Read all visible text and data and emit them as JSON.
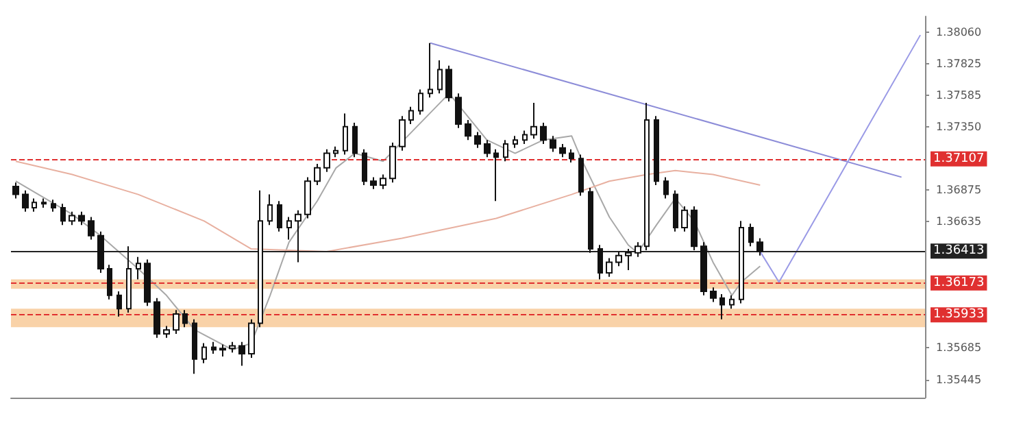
{
  "chart_data": {
    "type": "candlestick",
    "categories": [
      null,
      null,
      null,
      null,
      null,
      null,
      null,
      null,
      null,
      null,
      null,
      null,
      null,
      null,
      null,
      null,
      null,
      null,
      null,
      null,
      null,
      null,
      null,
      null,
      null,
      null,
      null,
      null,
      null,
      null,
      null,
      null,
      null,
      null,
      null,
      null,
      null,
      null,
      null,
      null,
      null,
      null,
      null,
      null,
      null,
      null,
      null,
      null,
      null,
      null,
      null,
      null,
      null,
      null,
      null,
      null,
      null,
      null,
      null,
      null,
      null,
      null,
      null,
      null,
      null,
      null,
      null,
      null,
      null,
      null,
      null,
      null,
      null,
      null,
      null,
      null,
      null,
      null,
      null,
      null,
      null,
      null,
      null,
      null,
      null,
      null,
      null,
      null,
      null,
      null,
      null,
      null,
      null,
      null,
      null,
      null,
      null
    ],
    "ohlc": [
      [
        1.369,
        1.3693,
        1.3681,
        1.3684
      ],
      [
        1.3684,
        1.3687,
        1.3671,
        1.3674
      ],
      [
        1.3674,
        1.3681,
        1.3671,
        1.3678
      ],
      [
        1.3678,
        1.3681,
        1.3674,
        1.3677
      ],
      [
        1.3677,
        1.368,
        1.3671,
        1.3674
      ],
      [
        1.3674,
        1.3677,
        1.3661,
        1.3664
      ],
      [
        1.3664,
        1.3671,
        1.3661,
        1.3668
      ],
      [
        1.3668,
        1.3671,
        1.3661,
        1.3664
      ],
      [
        1.3664,
        1.3667,
        1.365,
        1.3653
      ],
      [
        1.3653,
        1.3656,
        1.3625,
        1.3628
      ],
      [
        1.3628,
        1.3631,
        1.3605,
        1.3608
      ],
      [
        1.3608,
        1.3611,
        1.3592,
        1.3598
      ],
      [
        1.3598,
        1.3645,
        1.3595,
        1.3628
      ],
      [
        1.3628,
        1.3637,
        1.362,
        1.3632
      ],
      [
        1.3632,
        1.3635,
        1.36,
        1.3603
      ],
      [
        1.3603,
        1.3606,
        1.3576,
        1.3579
      ],
      [
        1.3579,
        1.3585,
        1.3576,
        1.3582
      ],
      [
        1.3582,
        1.3597,
        1.3579,
        1.3594
      ],
      [
        1.3594,
        1.3597,
        1.3584,
        1.3587
      ],
      [
        1.3587,
        1.359,
        1.3549,
        1.356
      ],
      [
        1.356,
        1.3572,
        1.3557,
        1.3569
      ],
      [
        1.3569,
        1.3573,
        1.3564,
        1.3567
      ],
      [
        1.3567,
        1.3571,
        1.3562,
        1.3568
      ],
      [
        1.3568,
        1.3573,
        1.3565,
        1.357
      ],
      [
        1.357,
        1.3573,
        1.3555,
        1.3564
      ],
      [
        1.3564,
        1.359,
        1.3561,
        1.3587
      ],
      [
        1.3587,
        1.3687,
        1.3584,
        1.3664
      ],
      [
        1.3664,
        1.3684,
        1.3661,
        1.3676
      ],
      [
        1.3676,
        1.3679,
        1.3656,
        1.3659
      ],
      [
        1.3659,
        1.3667,
        1.365,
        1.3664
      ],
      [
        1.3664,
        1.3672,
        1.3633,
        1.3669
      ],
      [
        1.3669,
        1.3697,
        1.3666,
        1.3694
      ],
      [
        1.3694,
        1.3707,
        1.3691,
        1.3704
      ],
      [
        1.3704,
        1.3718,
        1.3701,
        1.3715
      ],
      [
        1.3715,
        1.372,
        1.3712,
        1.3717
      ],
      [
        1.3717,
        1.3745,
        1.3714,
        1.3735
      ],
      [
        1.3735,
        1.3738,
        1.3712,
        1.3715
      ],
      [
        1.3715,
        1.3718,
        1.3691,
        1.3694
      ],
      [
        1.3694,
        1.3697,
        1.3688,
        1.3691
      ],
      [
        1.3691,
        1.3699,
        1.3688,
        1.3696
      ],
      [
        1.3696,
        1.3723,
        1.3693,
        1.372
      ],
      [
        1.372,
        1.3743,
        1.3717,
        1.374
      ],
      [
        1.374,
        1.375,
        1.3737,
        1.3747
      ],
      [
        1.3747,
        1.3763,
        1.3744,
        1.376
      ],
      [
        1.376,
        1.3798,
        1.3757,
        1.3763
      ],
      [
        1.3763,
        1.3785,
        1.376,
        1.3778
      ],
      [
        1.3778,
        1.3781,
        1.3754,
        1.3757
      ],
      [
        1.3757,
        1.376,
        1.3734,
        1.3737
      ],
      [
        1.3737,
        1.374,
        1.3725,
        1.3728
      ],
      [
        1.3728,
        1.3731,
        1.3719,
        1.3722
      ],
      [
        1.3722,
        1.3725,
        1.3712,
        1.3715
      ],
      [
        1.3715,
        1.3718,
        1.3679,
        1.3712
      ],
      [
        1.3712,
        1.3725,
        1.3709,
        1.3722
      ],
      [
        1.3722,
        1.3728,
        1.3719,
        1.3725
      ],
      [
        1.3725,
        1.3732,
        1.3722,
        1.3729
      ],
      [
        1.3729,
        1.3753,
        1.3726,
        1.3735
      ],
      [
        1.3735,
        1.3738,
        1.3722,
        1.3725
      ],
      [
        1.3725,
        1.3728,
        1.3716,
        1.3719
      ],
      [
        1.3719,
        1.3722,
        1.3712,
        1.3715
      ],
      [
        1.3715,
        1.3718,
        1.3708,
        1.3711
      ],
      [
        1.3711,
        1.3714,
        1.3683,
        1.3686
      ],
      [
        1.3686,
        1.3689,
        1.364,
        1.3643
      ],
      [
        1.3643,
        1.3646,
        1.362,
        1.3625
      ],
      [
        1.3625,
        1.3636,
        1.3622,
        1.3633
      ],
      [
        1.3633,
        1.3641,
        1.363,
        1.3638
      ],
      [
        1.3638,
        1.3643,
        1.3627,
        1.364
      ],
      [
        1.364,
        1.3648,
        1.3637,
        1.3645
      ],
      [
        1.3645,
        1.3753,
        1.3642,
        1.374
      ],
      [
        1.374,
        1.3743,
        1.3691,
        1.3694
      ],
      [
        1.3694,
        1.3697,
        1.3681,
        1.3684
      ],
      [
        1.3684,
        1.3687,
        1.3656,
        1.3659
      ],
      [
        1.3659,
        1.3675,
        1.3656,
        1.3672
      ],
      [
        1.3672,
        1.3675,
        1.3642,
        1.3645
      ],
      [
        1.3645,
        1.3648,
        1.3608,
        1.3611
      ],
      [
        1.3611,
        1.3614,
        1.3603,
        1.3606
      ],
      [
        1.3606,
        1.3609,
        1.359,
        1.3601
      ],
      [
        1.3601,
        1.3608,
        1.3598,
        1.3605
      ],
      [
        1.3605,
        1.3664,
        1.3602,
        1.3659
      ],
      [
        1.3659,
        1.3662,
        1.3645,
        1.3648
      ],
      [
        1.3648,
        1.3651,
        1.3638,
        1.3641
      ],
      null,
      null,
      null,
      null,
      null,
      null,
      null,
      null,
      null,
      null,
      null,
      null,
      null,
      null,
      null,
      null,
      null
    ],
    "series": [
      {
        "type": "line",
        "color": "#a8a8a8",
        "values": [
          1.3694,
          null,
          null,
          null,
          null,
          null,
          1.3669,
          null,
          null,
          1.3653,
          null,
          null,
          null,
          1.3628,
          null,
          null,
          1.3608,
          null,
          null,
          1.3582,
          null,
          null,
          null,
          1.3567,
          null,
          1.3572,
          null,
          1.3608,
          null,
          1.3648,
          null,
          null,
          1.3679,
          null,
          1.3704,
          null,
          1.3715,
          null,
          null,
          1.3709,
          null,
          null,
          null,
          null,
          null,
          null,
          1.376,
          null,
          null,
          null,
          1.3725,
          null,
          null,
          1.3715,
          null,
          null,
          1.3725,
          null,
          null,
          1.3728,
          1.3711,
          null,
          null,
          1.3667,
          null,
          1.3646,
          1.364,
          null,
          1.3661,
          null,
          1.3681,
          null,
          1.3664,
          null,
          1.3633,
          null,
          1.3608,
          1.3618,
          null,
          1.363,
          null,
          null,
          null,
          null,
          null,
          null,
          null,
          null,
          null,
          null,
          null,
          null,
          null,
          null,
          null,
          null,
          null
        ]
      },
      {
        "type": "line",
        "color": "#e8b0a0",
        "values": [
          1.3709,
          null,
          null,
          null,
          null,
          null,
          1.3699,
          null,
          null,
          null,
          null,
          null,
          null,
          1.3684,
          null,
          null,
          null,
          null,
          null,
          null,
          1.3664,
          null,
          null,
          null,
          null,
          1.3643,
          null,
          null,
          null,
          null,
          null,
          null,
          null,
          1.3641,
          null,
          null,
          null,
          null,
          null,
          null,
          null,
          1.3651,
          null,
          null,
          null,
          null,
          null,
          null,
          null,
          null,
          null,
          1.3666,
          null,
          null,
          null,
          null,
          null,
          null,
          null,
          1.3684,
          null,
          null,
          null,
          1.3694,
          null,
          null,
          null,
          1.3699,
          null,
          null,
          1.3702,
          null,
          null,
          null,
          1.3699,
          null,
          null,
          null,
          null,
          1.3691,
          null,
          null,
          null,
          null,
          null,
          null,
          null,
          null,
          null,
          null,
          null,
          null,
          null,
          null,
          null,
          null,
          null
        ]
      },
      {
        "type": "line",
        "color": "#8c8cd8",
        "values": [
          null,
          null,
          null,
          null,
          null,
          null,
          null,
          null,
          null,
          null,
          null,
          null,
          null,
          null,
          null,
          null,
          null,
          null,
          null,
          null,
          null,
          null,
          null,
          null,
          null,
          null,
          null,
          null,
          null,
          null,
          null,
          null,
          null,
          null,
          null,
          null,
          null,
          null,
          null,
          null,
          null,
          null,
          null,
          null,
          1.3798,
          null,
          null,
          null,
          null,
          null,
          null,
          null,
          null,
          null,
          null,
          null,
          null,
          null,
          null,
          null,
          null,
          null,
          null,
          null,
          null,
          null,
          null,
          null,
          null,
          null,
          null,
          null,
          null,
          null,
          null,
          null,
          null,
          null,
          null,
          null,
          null,
          null,
          null,
          null,
          null,
          null,
          null,
          null,
          null,
          null,
          null,
          null,
          null,
          null,
          1.3697,
          null,
          null
        ]
      },
      {
        "type": "line",
        "color": "#9a9ae6",
        "values": [
          null,
          null,
          null,
          null,
          null,
          null,
          null,
          null,
          null,
          null,
          null,
          null,
          null,
          null,
          null,
          null,
          null,
          null,
          null,
          null,
          null,
          null,
          null,
          null,
          null,
          null,
          null,
          null,
          null,
          null,
          null,
          null,
          null,
          null,
          null,
          null,
          null,
          null,
          null,
          null,
          null,
          null,
          null,
          null,
          null,
          null,
          null,
          null,
          null,
          null,
          null,
          null,
          null,
          null,
          null,
          null,
          null,
          null,
          null,
          null,
          null,
          null,
          null,
          null,
          null,
          null,
          null,
          null,
          null,
          null,
          null,
          null,
          null,
          null,
          null,
          null,
          null,
          null,
          null,
          1.3641,
          null,
          1.3618,
          null,
          null,
          null,
          null,
          null,
          null,
          null,
          null,
          null,
          null,
          null,
          null,
          null,
          null,
          1.3804
        ]
      }
    ],
    "ylim": [
      1.3531,
      1.3818
    ],
    "yticks": [
      {
        "value": 1.3806,
        "label": "1.38060"
      },
      {
        "value": 1.37825,
        "label": "1.37825"
      },
      {
        "value": 1.37585,
        "label": "1.37585"
      },
      {
        "value": 1.3735,
        "label": "1.37350"
      },
      {
        "value": 1.36875,
        "label": "1.36875"
      },
      {
        "value": 1.36635,
        "label": "1.36635"
      },
      {
        "value": 1.35685,
        "label": "1.35685"
      },
      {
        "value": 1.35445,
        "label": "1.35445"
      }
    ],
    "ref_lines": [
      {
        "axis": "y",
        "value": 1.37107,
        "label": "1.37107",
        "color": "#e03030",
        "line_style": "dashed"
      },
      {
        "axis": "y",
        "value": 1.36413,
        "label": "1.36413",
        "color": "#222222",
        "line_style": "solid"
      },
      {
        "axis": "y",
        "value": 1.36173,
        "label": "1.36173",
        "color": "#e03030",
        "line_style": "dashed"
      },
      {
        "axis": "y",
        "value": 1.35933,
        "label": "1.35933",
        "color": "#e03030",
        "line_style": "dashed"
      }
    ],
    "bands": [
      {
        "axis": "y",
        "from": 1.3613,
        "to": 1.362,
        "color": "#f9d2a8"
      },
      {
        "axis": "y",
        "from": 1.3584,
        "to": 1.3598,
        "color": "#f9d2a8"
      }
    ],
    "tick_labels": "y",
    "marker": "none",
    "grid": false
  }
}
